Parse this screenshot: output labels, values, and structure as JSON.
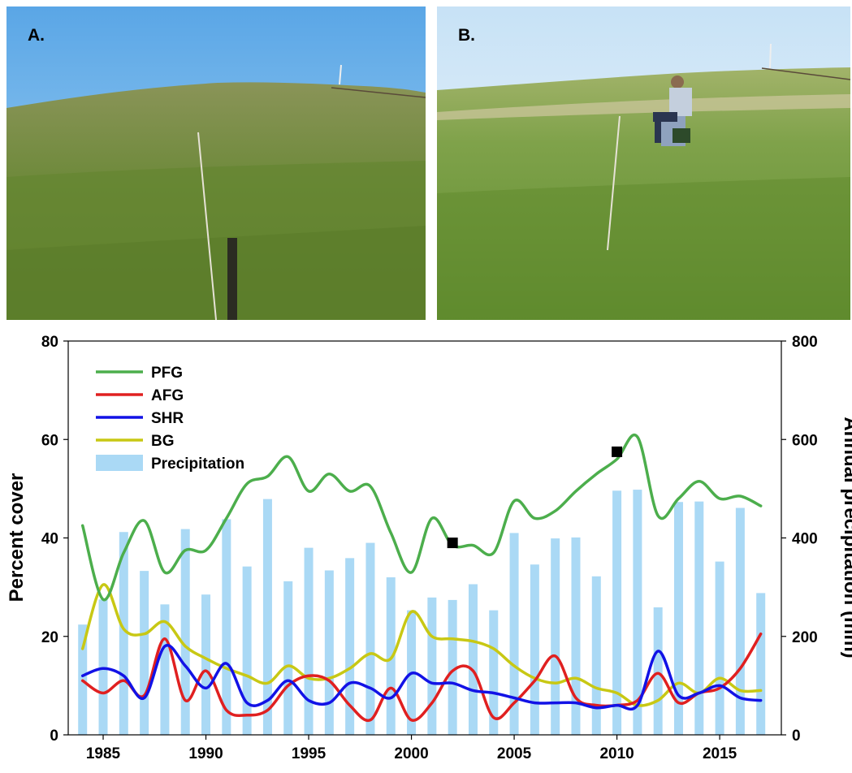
{
  "photos": [
    {
      "label": "A."
    },
    {
      "label": "B."
    }
  ],
  "colors": {
    "PFG": "#4cae4c",
    "AFG": "#e02020",
    "SHR": "#1212e6",
    "BG": "#c8c814",
    "Precipitation": "#aad9f5",
    "marker": "#000000"
  },
  "chart_data": {
    "type": "bar",
    "xlabel": "",
    "ylabel": "Percent cover",
    "y2label": "Annual precipitation (mm)",
    "xlim": [
      1983.3,
      2018
    ],
    "ylim": [
      0,
      80
    ],
    "y2lim": [
      0,
      800
    ],
    "xticks": [
      1985,
      1990,
      1995,
      2000,
      2005,
      2010,
      2015
    ],
    "yticks": [
      0,
      20,
      40,
      60,
      80
    ],
    "y2ticks": [
      0,
      200,
      400,
      600,
      800
    ],
    "legend_position": "top-left",
    "legend": [
      "PFG",
      "AFG",
      "SHR",
      "BG",
      "Precipitation"
    ],
    "years": [
      1984,
      1985,
      1986,
      1987,
      1988,
      1989,
      1990,
      1991,
      1992,
      1993,
      1994,
      1995,
      1996,
      1997,
      1998,
      1999,
      2000,
      2001,
      2002,
      2003,
      2004,
      2005,
      2006,
      2007,
      2008,
      2009,
      2010,
      2011,
      2012,
      2013,
      2014,
      2015,
      2016,
      2017
    ],
    "precipitation": [
      224,
      275,
      412,
      333,
      265,
      418,
      285,
      438,
      342,
      479,
      312,
      380,
      334,
      359,
      390,
      320,
      253,
      279,
      274,
      306,
      253,
      410,
      346,
      399,
      401,
      322,
      496,
      498,
      259,
      473,
      474,
      352,
      461,
      288
    ],
    "series": [
      {
        "name": "PFG",
        "x": [
          1984,
          1985,
          1986,
          1987,
          1988,
          1989,
          1990,
          1991,
          1992,
          1993,
          1994,
          1995,
          1996,
          1997,
          1998,
          1999,
          2000,
          2001,
          2002,
          2003,
          2004,
          2005,
          2006,
          2007,
          2008,
          2009,
          2010,
          2011,
          2012,
          2013,
          2014,
          2015,
          2016,
          2017
        ],
        "values": [
          42.5,
          27.5,
          37,
          43.5,
          33,
          37.5,
          37.5,
          44,
          51,
          52.5,
          56.5,
          49.5,
          53,
          49.5,
          50.5,
          41,
          33,
          44,
          38.5,
          38.5,
          37,
          47.5,
          44,
          45.5,
          49.5,
          53,
          56,
          60.5,
          44.5,
          48,
          51.5,
          48,
          48.5,
          46.5
        ]
      },
      {
        "name": "AFG",
        "x": [
          1984,
          1985,
          1986,
          1987,
          1988,
          1989,
          1990,
          1991,
          1992,
          1993,
          1994,
          1995,
          1996,
          1997,
          1998,
          1999,
          2000,
          2001,
          2002,
          2003,
          2004,
          2005,
          2006,
          2007,
          2008,
          2009,
          2010,
          2011,
          2012,
          2013,
          2014,
          2015,
          2016,
          2017
        ],
        "values": [
          11,
          8.5,
          11,
          8,
          19.5,
          7,
          13,
          5,
          4,
          5,
          10,
          12,
          11,
          6,
          3,
          9.5,
          3,
          6.5,
          13,
          13,
          3.5,
          6.5,
          11,
          16,
          7.5,
          6,
          6,
          7,
          12.5,
          6.5,
          8.5,
          9.5,
          13.5,
          20.5
        ]
      },
      {
        "name": "SHR",
        "x": [
          1984,
          1985,
          1986,
          1987,
          1988,
          1989,
          1990,
          1991,
          1992,
          1993,
          1994,
          1995,
          1996,
          1997,
          1998,
          1999,
          2000,
          2001,
          2002,
          2003,
          2004,
          2005,
          2006,
          2007,
          2008,
          2009,
          2010,
          2011,
          2012,
          2013,
          2014,
          2015,
          2016,
          2017
        ],
        "values": [
          12,
          13.5,
          12,
          7.5,
          18,
          14,
          9.5,
          14.5,
          6.5,
          7,
          11,
          7,
          6.5,
          10.5,
          9.5,
          7.5,
          12.5,
          10.5,
          10.5,
          9,
          8.5,
          7.5,
          6.5,
          6.5,
          6.5,
          5.5,
          6,
          6,
          17,
          8,
          8.5,
          10,
          7.5,
          7
        ]
      },
      {
        "name": "BG",
        "x": [
          1984,
          1985,
          1986,
          1987,
          1988,
          1989,
          1990,
          1991,
          1992,
          1993,
          1994,
          1995,
          1996,
          1997,
          1998,
          1999,
          2000,
          2001,
          2002,
          2003,
          2004,
          2005,
          2006,
          2007,
          2008,
          2009,
          2010,
          2011,
          2012,
          2013,
          2014,
          2015,
          2016,
          2017
        ],
        "values": [
          17.5,
          30.5,
          21.5,
          20.5,
          23,
          18,
          15.5,
          13.5,
          12,
          10.5,
          14,
          11.5,
          11.5,
          13.5,
          16.5,
          15.5,
          25,
          20,
          19.5,
          19,
          17.5,
          14,
          11.5,
          10.5,
          11.5,
          9.5,
          8.5,
          6,
          7,
          10.5,
          8.5,
          11.5,
          9,
          9
        ]
      }
    ],
    "markers": [
      {
        "x": 2002,
        "y": 39
      },
      {
        "x": 2010,
        "y": 57.5
      }
    ]
  }
}
